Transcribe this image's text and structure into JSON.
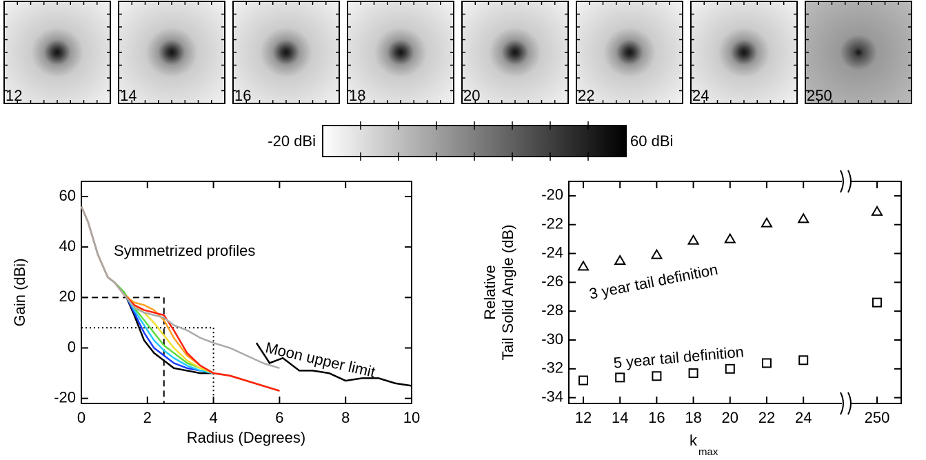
{
  "panels": {
    "labels": [
      "12",
      "14",
      "16",
      "18",
      "20",
      "22",
      "24",
      "250"
    ]
  },
  "colorbar": {
    "min_label": "-20 dBi",
    "max_label": "60 dBi"
  },
  "chart_data": [
    {
      "type": "line",
      "xlabel": "Radius (Degrees)",
      "ylabel": "Gain (dBi)",
      "annotations": [
        "Symmetrized profiles"
      ],
      "xlim": [
        0,
        10
      ],
      "ylim": [
        -22,
        66
      ],
      "xticks": [
        0,
        2,
        4,
        6,
        8,
        10
      ],
      "yticks": [
        -20,
        0,
        20,
        40,
        60
      ],
      "reference_boxes": [
        {
          "x": 2.5,
          "y": 20,
          "style": "dashed"
        },
        {
          "x": 4,
          "y": 8,
          "style": "dotted"
        }
      ],
      "series": [
        {
          "color": "#000000",
          "x": [
            0,
            0.2,
            0.5,
            0.8,
            1.0,
            1.3,
            1.6,
            1.9,
            2.2,
            2.5,
            2.8,
            3.2,
            3.6,
            4.0,
            4.5,
            5.0,
            5.5,
            6.0
          ],
          "values": [
            56,
            50,
            37,
            28,
            26,
            22,
            13,
            3,
            -2,
            -5,
            -8,
            -9,
            -10,
            -10,
            -11,
            -13,
            -15,
            -17
          ]
        },
        {
          "color": "#1a3cff",
          "x": [
            0,
            0.2,
            0.5,
            0.8,
            1.0,
            1.3,
            1.6,
            1.9,
            2.2,
            2.5,
            2.8,
            3.2,
            3.6,
            4.0,
            4.5,
            5.0,
            5.5,
            6.0
          ],
          "values": [
            56,
            50,
            37,
            28,
            26,
            22,
            14,
            6,
            0,
            -3,
            -6,
            -8,
            -9,
            -10,
            -11,
            -13,
            -15,
            -17
          ]
        },
        {
          "color": "#22c8ff",
          "x": [
            0,
            0.2,
            0.5,
            0.8,
            1.0,
            1.3,
            1.6,
            1.9,
            2.2,
            2.5,
            2.8,
            3.2,
            3.6,
            4.0,
            4.5,
            5.0,
            5.5,
            6.0
          ],
          "values": [
            56,
            50,
            37,
            28,
            26,
            22,
            15,
            9,
            3,
            -1,
            -4,
            -7,
            -9,
            -10,
            -11,
            -13,
            -15,
            -17
          ]
        },
        {
          "color": "#5fdc3c",
          "x": [
            0,
            0.2,
            0.5,
            0.8,
            1.0,
            1.3,
            1.6,
            1.9,
            2.2,
            2.5,
            2.8,
            3.2,
            3.6,
            4.0,
            4.5,
            5.0,
            5.5,
            6.0
          ],
          "values": [
            56,
            50,
            37,
            28,
            26,
            22,
            16,
            11,
            6,
            1,
            -2,
            -6,
            -8,
            -10,
            -11,
            -13,
            -15,
            -17
          ]
        },
        {
          "color": "#f0e030",
          "x": [
            0,
            0.2,
            0.5,
            0.8,
            1.0,
            1.3,
            1.6,
            1.9,
            2.2,
            2.5,
            2.8,
            3.2,
            3.6,
            4.0,
            4.5,
            5.0,
            5.5,
            6.0
          ],
          "values": [
            56,
            50,
            37,
            28,
            26,
            21,
            17,
            14,
            10,
            5,
            0,
            -5,
            -8,
            -10,
            -11,
            -13,
            -15,
            -17
          ]
        },
        {
          "color": "#ffa020",
          "x": [
            0,
            0.2,
            0.5,
            0.8,
            1.0,
            1.3,
            1.6,
            1.9,
            2.2,
            2.5,
            2.8,
            3.2,
            3.6,
            4.0,
            4.5,
            5.0,
            5.5,
            6.0
          ],
          "values": [
            56,
            50,
            37,
            28,
            26,
            21,
            18,
            17,
            15,
            11,
            4,
            -3,
            -7,
            -10,
            -11,
            -13,
            -15,
            -17
          ]
        },
        {
          "color": "#ff2010",
          "x": [
            0,
            0.2,
            0.5,
            0.8,
            1.0,
            1.3,
            1.6,
            1.9,
            2.2,
            2.5,
            2.8,
            3.2,
            3.6,
            4.0,
            4.5,
            5.0,
            5.5,
            6.0
          ],
          "values": [
            56,
            50,
            37,
            28,
            26,
            21,
            17,
            15,
            14,
            13,
            7,
            -2,
            -7,
            -10,
            -11,
            -13,
            -15,
            -17
          ]
        },
        {
          "color": "#aaaaaa",
          "x": [
            0,
            0.2,
            0.5,
            0.8,
            1.0,
            1.3,
            1.6,
            1.9,
            2.2,
            2.5,
            2.8,
            3.2,
            3.6,
            4.0,
            4.5,
            5.0,
            5.5,
            6.0
          ],
          "values": [
            56,
            50,
            37,
            28,
            26,
            21,
            16,
            14,
            13,
            12,
            9,
            7,
            4,
            2,
            0,
            -3,
            -6,
            -8
          ]
        },
        {
          "name": "Moon upper limit",
          "color": "#000000",
          "x": [
            5.3,
            5.7,
            6.1,
            6.6,
            7.0,
            7.5,
            8.0,
            8.5,
            9.0,
            9.5,
            10
          ],
          "values": [
            2,
            -6,
            -4,
            -9,
            -9,
            -10,
            -13,
            -12,
            -12,
            -14,
            -15
          ]
        }
      ]
    },
    {
      "type": "scatter",
      "xlabel": "k",
      "xlabel_subscript": "max",
      "ylabel_lines": [
        "Relative",
        "Tail Solid Angle (dB)"
      ],
      "categories": [
        "12",
        "14",
        "16",
        "18",
        "20",
        "22",
        "24",
        "250"
      ],
      "axis_break": true,
      "ylim": [
        -34.4,
        -19
      ],
      "yticks": [
        -34,
        -32,
        -30,
        -28,
        -26,
        -24,
        -22,
        -20
      ],
      "series": [
        {
          "name": "3 year tail definition",
          "marker": "triangle",
          "color": "#000000",
          "values": [
            -24.9,
            -24.5,
            -24.1,
            -23.1,
            -23.0,
            -21.9,
            -21.6,
            -21.1
          ]
        },
        {
          "name": "5 year tail definition",
          "marker": "square",
          "color": "#000000",
          "values": [
            -32.8,
            -32.6,
            -32.5,
            -32.3,
            -32.0,
            -31.6,
            -31.4,
            -27.4
          ]
        }
      ]
    }
  ]
}
